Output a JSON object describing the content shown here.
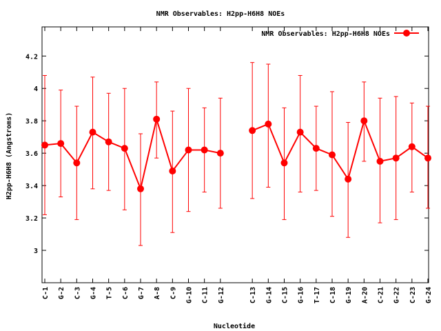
{
  "chart_data": {
    "type": "line",
    "title": "NMR Observables: H2pp-H6H8 NOEs",
    "xlabel": "Nucleotide",
    "ylabel": "H2pp-H6H8 (Angstroms)",
    "ylim": [
      2.8,
      4.38
    ],
    "yticks": [
      "3",
      "3.2",
      "3.4",
      "3.6",
      "3.8",
      "4",
      "4.2"
    ],
    "legend": {
      "label": "NMR Observables: H2pp-H6H8 NOEs",
      "placement": "top-right"
    },
    "grid": false,
    "series": [
      {
        "name": "NMR Observables: H2pp-H6H8 NOEs",
        "color": "#ff0000",
        "segments": [
          [
            {
              "label": "C-1",
              "y": 3.65,
              "lo": 3.22,
              "hi": 4.08
            },
            {
              "label": "G-2",
              "y": 3.66,
              "lo": 3.33,
              "hi": 3.99
            },
            {
              "label": "C-3",
              "y": 3.54,
              "lo": 3.19,
              "hi": 3.89
            },
            {
              "label": "G-4",
              "y": 3.73,
              "lo": 3.38,
              "hi": 4.07
            },
            {
              "label": "T-5",
              "y": 3.67,
              "lo": 3.37,
              "hi": 3.97
            },
            {
              "label": "C-6",
              "y": 3.63,
              "lo": 3.25,
              "hi": 4.0
            },
            {
              "label": "G-7",
              "y": 3.38,
              "lo": 3.03,
              "hi": 3.72
            },
            {
              "label": "A-8",
              "y": 3.81,
              "lo": 3.57,
              "hi": 4.04
            },
            {
              "label": "C-9",
              "y": 3.49,
              "lo": 3.11,
              "hi": 3.86
            },
            {
              "label": "G-10",
              "y": 3.62,
              "lo": 3.24,
              "hi": 4.0
            },
            {
              "label": "C-11",
              "y": 3.62,
              "lo": 3.36,
              "hi": 3.88
            },
            {
              "label": "G-12",
              "y": 3.6,
              "lo": 3.26,
              "hi": 3.94
            }
          ],
          [
            {
              "label": "C-13",
              "y": 3.74,
              "lo": 3.32,
              "hi": 4.16
            },
            {
              "label": "G-14",
              "y": 3.78,
              "lo": 3.39,
              "hi": 4.15
            },
            {
              "label": "C-15",
              "y": 3.54,
              "lo": 3.19,
              "hi": 3.88
            },
            {
              "label": "G-16",
              "y": 3.73,
              "lo": 3.36,
              "hi": 4.08
            },
            {
              "label": "T-17",
              "y": 3.63,
              "lo": 3.37,
              "hi": 3.89
            },
            {
              "label": "C-18",
              "y": 3.59,
              "lo": 3.21,
              "hi": 3.98
            },
            {
              "label": "G-19",
              "y": 3.44,
              "lo": 3.08,
              "hi": 3.79
            },
            {
              "label": "A-20",
              "y": 3.8,
              "lo": 3.55,
              "hi": 4.04
            },
            {
              "label": "C-21",
              "y": 3.55,
              "lo": 3.17,
              "hi": 3.94
            },
            {
              "label": "G-22",
              "y": 3.57,
              "lo": 3.19,
              "hi": 3.95
            },
            {
              "label": "C-23",
              "y": 3.64,
              "lo": 3.36,
              "hi": 3.91
            },
            {
              "label": "G-24",
              "y": 3.57,
              "lo": 3.26,
              "hi": 3.89
            }
          ]
        ]
      }
    ]
  }
}
